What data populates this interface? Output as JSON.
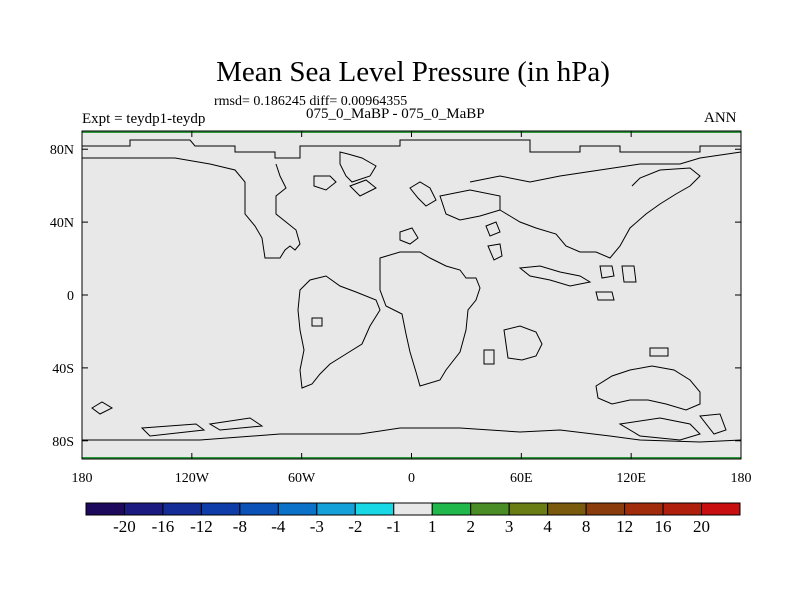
{
  "title": "Mean Sea Level Pressure (in hPa)",
  "stats": "rmsd= 0.186245 diff= 0.00964355",
  "left_label": "Expt = teydp1-teydp",
  "center_label": "075_0_MaBP - 075_0_MaBP",
  "right_label": "ANN",
  "colors": {
    "map_background": "#e8e8e8",
    "coastline": "#000000",
    "edge_accent": "#2a9a3a"
  },
  "chart_data": {
    "type": "heatmap",
    "title": "Mean Sea Level Pressure (in hPa)",
    "x_range": [
      -180,
      180
    ],
    "y_range": [
      -90,
      90
    ],
    "x_ticks": [
      {
        "value": -180,
        "label": "180"
      },
      {
        "value": -120,
        "label": "120W"
      },
      {
        "value": -60,
        "label": "60W"
      },
      {
        "value": 0,
        "label": "0"
      },
      {
        "value": 60,
        "label": "60E"
      },
      {
        "value": 120,
        "label": "120E"
      },
      {
        "value": 180,
        "label": "180"
      }
    ],
    "y_ticks": [
      {
        "value": 80,
        "label": "80N"
      },
      {
        "value": 40,
        "label": "40N"
      },
      {
        "value": 0,
        "label": "0"
      },
      {
        "value": -40,
        "label": "40S"
      },
      {
        "value": -80,
        "label": "80S"
      }
    ],
    "field_value_band": "-1 to 1",
    "colorbar": {
      "labels": [
        "-20",
        "-16",
        "-12",
        "-8",
        "-4",
        "-3",
        "-2",
        "-1",
        "1",
        "2",
        "3",
        "4",
        "8",
        "12",
        "16",
        "20"
      ],
      "colors": [
        "#1e0a5c",
        "#1a1a80",
        "#142c96",
        "#0e3ca8",
        "#0a52b8",
        "#0a72c8",
        "#14a0d8",
        "#18d8e6",
        "#e8e8e8",
        "#20b84a",
        "#4a8c26",
        "#6a7c14",
        "#7a5a0c",
        "#8a3c0c",
        "#a02c0c",
        "#b01e0c",
        "#c80e0e"
      ]
    }
  }
}
